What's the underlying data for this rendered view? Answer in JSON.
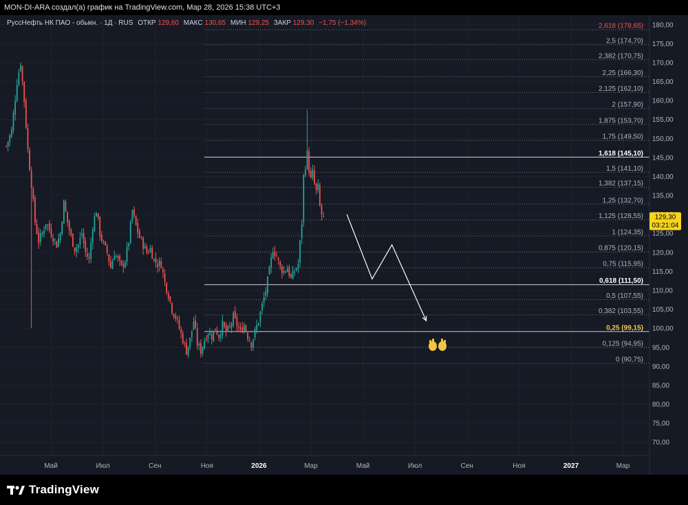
{
  "header": {
    "caption": "MON-DI-ARA создал(а) график на TradingView.com, Мар 28, 2026 15:38 UTC+3"
  },
  "legend": {
    "symbol": "РуссНефть НК ПАО - обыкн. · 1Д · RUS",
    "open_label": "ОТКР",
    "open": "129,60",
    "high_label": "МАКС",
    "high": "130,65",
    "low_label": "МИН",
    "low": "129,25",
    "close_label": "ЗАКР",
    "close": "129,30",
    "change": "−1,75 (−1,34%)"
  },
  "price_badge": {
    "price": "129,30",
    "countdown": "03:21:04"
  },
  "footer": {
    "brand": "TradingView"
  },
  "colors": {
    "up": "#26a69a",
    "down": "#ef5350",
    "background": "#161a25",
    "grid": "#1e222d",
    "fib_line": "#b2b5be",
    "highlight": "#f7c948"
  },
  "chart_data": {
    "type": "candlestick",
    "title": "РуссНефть НК ПАО - обыкн. · 1Д · RUS",
    "y_axis": {
      "ylim": [
        66.5,
        182.5
      ],
      "ticks": [
        "180,00",
        "175,00",
        "170,00",
        "165,00",
        "160,00",
        "155,00",
        "150,00",
        "145,00",
        "140,00",
        "135,00",
        "130,00",
        "125,00",
        "120,00",
        "115,00",
        "110,00",
        "105,00",
        "100,00",
        "95,00",
        "90,00",
        "85,00",
        "80,00",
        "75,00",
        "70,00"
      ]
    },
    "x_axis": {
      "ticks": [
        "Май",
        "Июл",
        "Сен",
        "Ноя",
        "2026",
        "Мар",
        "Май",
        "Июл",
        "Сен",
        "Ноя",
        "2027",
        "Мар"
      ]
    },
    "fibonacci": [
      {
        "label": "2,618 (178,65)",
        "price": 178.65,
        "color": "#ef5350",
        "bold": false
      },
      {
        "label": "2,5 (174,70)",
        "price": 174.7,
        "color": "#b2b5be",
        "bold": false
      },
      {
        "label": "2,382 (170,75)",
        "price": 170.75,
        "color": "#b2b5be",
        "bold": false
      },
      {
        "label": "2,25 (166,30)",
        "price": 166.3,
        "color": "#b2b5be",
        "bold": false
      },
      {
        "label": "2,125 (162,10)",
        "price": 162.1,
        "color": "#b2b5be",
        "bold": false
      },
      {
        "label": "2 (157,90)",
        "price": 157.9,
        "color": "#b2b5be",
        "bold": false
      },
      {
        "label": "1,875 (153,70)",
        "price": 153.7,
        "color": "#b2b5be",
        "bold": false
      },
      {
        "label": "1,75 (149,50)",
        "price": 149.5,
        "color": "#b2b5be",
        "bold": false
      },
      {
        "label": "1,618 (145,10)",
        "price": 145.1,
        "color": "#ffffff",
        "bold": true
      },
      {
        "label": "1,5 (141,10)",
        "price": 141.1,
        "color": "#b2b5be",
        "bold": false
      },
      {
        "label": "1,382 (137,15)",
        "price": 137.15,
        "color": "#b2b5be",
        "bold": false
      },
      {
        "label": "1,25 (132,70)",
        "price": 132.7,
        "color": "#b2b5be",
        "bold": false
      },
      {
        "label": "1,125 (128,55)",
        "price": 128.55,
        "color": "#b2b5be",
        "bold": false
      },
      {
        "label": "1 (124,35)",
        "price": 124.35,
        "color": "#b2b5be",
        "bold": false
      },
      {
        "label": "0,875 (120,15)",
        "price": 120.15,
        "color": "#b2b5be",
        "bold": false
      },
      {
        "label": "0,75 (115,95)",
        "price": 115.95,
        "color": "#b2b5be",
        "bold": false
      },
      {
        "label": "0,618 (111,50)",
        "price": 111.5,
        "color": "#ffffff",
        "bold": true
      },
      {
        "label": "0,5 (107,55)",
        "price": 107.55,
        "color": "#b2b5be",
        "bold": false
      },
      {
        "label": "0,382 (103,55)",
        "price": 103.55,
        "color": "#b2b5be",
        "bold": false
      },
      {
        "label": "0,25 (99,15)",
        "price": 99.15,
        "color": "#f7c948",
        "bold": true
      },
      {
        "label": "0,125 (94,95)",
        "price": 94.95,
        "color": "#b2b5be",
        "bold": false
      },
      {
        "label": "0 (90,75)",
        "price": 90.75,
        "color": "#b2b5be",
        "bold": false
      }
    ],
    "price_path": [
      [
        0,
        148
      ],
      [
        3,
        152
      ],
      [
        6,
        165
      ],
      [
        8,
        170
      ],
      [
        10,
        160
      ],
      [
        12,
        147
      ],
      [
        14,
        138
      ],
      [
        16,
        128
      ],
      [
        18,
        123
      ],
      [
        20,
        125
      ],
      [
        22,
        128
      ],
      [
        24,
        126
      ],
      [
        26,
        124
      ],
      [
        28,
        122
      ],
      [
        30,
        125
      ],
      [
        32,
        133
      ],
      [
        34,
        128
      ],
      [
        36,
        124
      ],
      [
        38,
        121
      ],
      [
        40,
        122
      ],
      [
        42,
        125
      ],
      [
        44,
        120
      ],
      [
        46,
        118
      ],
      [
        48,
        127
      ],
      [
        50,
        131
      ],
      [
        52,
        125
      ],
      [
        54,
        122
      ],
      [
        56,
        120
      ],
      [
        58,
        116
      ],
      [
        60,
        120
      ],
      [
        62,
        118
      ],
      [
        64,
        116
      ],
      [
        66,
        118
      ],
      [
        68,
        123
      ],
      [
        70,
        131
      ],
      [
        72,
        127
      ],
      [
        74,
        124
      ],
      [
        76,
        122
      ],
      [
        78,
        120
      ],
      [
        80,
        121
      ],
      [
        82,
        118
      ],
      [
        84,
        117
      ],
      [
        86,
        117
      ],
      [
        88,
        112
      ],
      [
        90,
        109
      ],
      [
        92,
        105
      ],
      [
        94,
        103
      ],
      [
        96,
        100
      ],
      [
        98,
        97
      ],
      [
        100,
        94
      ],
      [
        102,
        97
      ],
      [
        104,
        102
      ],
      [
        106,
        96
      ],
      [
        108,
        94
      ],
      [
        110,
        97
      ],
      [
        112,
        99
      ],
      [
        114,
        98
      ],
      [
        116,
        100
      ],
      [
        118,
        98
      ],
      [
        120,
        101
      ],
      [
        122,
        99
      ],
      [
        124,
        100
      ],
      [
        126,
        103
      ],
      [
        128,
        101
      ],
      [
        130,
        99
      ],
      [
        132,
        101
      ],
      [
        134,
        98
      ],
      [
        136,
        96
      ],
      [
        138,
        99
      ],
      [
        140,
        102
      ],
      [
        142,
        106
      ],
      [
        144,
        110
      ],
      [
        146,
        115
      ],
      [
        148,
        121
      ],
      [
        150,
        119
      ],
      [
        152,
        116
      ],
      [
        154,
        115
      ],
      [
        156,
        116
      ],
      [
        158,
        113
      ],
      [
        160,
        115
      ],
      [
        162,
        117
      ],
      [
        164,
        128
      ],
      [
        165,
        140
      ],
      [
        166,
        143
      ],
      [
        167,
        146
      ],
      [
        168,
        142
      ],
      [
        169,
        139
      ],
      [
        170,
        141
      ],
      [
        171,
        138
      ],
      [
        172,
        136
      ],
      [
        173,
        137
      ],
      [
        174,
        132
      ],
      [
        175,
        130
      ],
      [
        176,
        129.3
      ]
    ],
    "scenario_path": [
      [
        189,
        130
      ],
      [
        203,
        113
      ],
      [
        214,
        122
      ],
      [
        233,
        102
      ]
    ]
  }
}
